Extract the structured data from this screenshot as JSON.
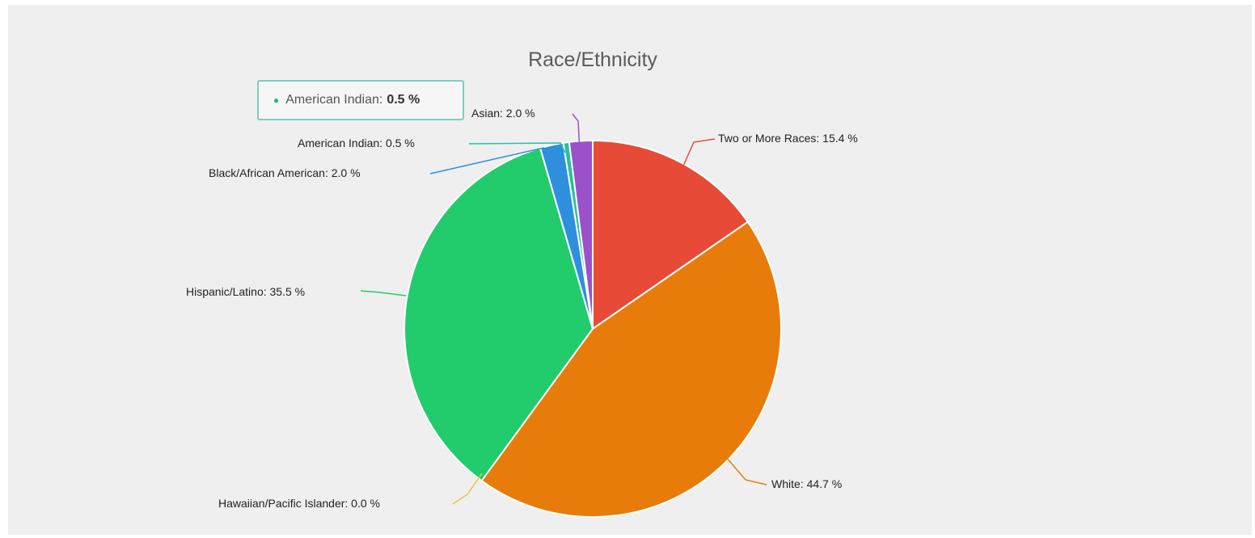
{
  "chart_data": {
    "type": "pie",
    "title": "Race/Ethnicity",
    "slices": [
      {
        "name": "Two or More Races",
        "value": 15.4,
        "label": "Two or More Races: 15.4 %",
        "color": "#e74b37"
      },
      {
        "name": "White",
        "value": 44.7,
        "label": "White: 44.7 %",
        "color": "#e77c0a"
      },
      {
        "name": "Hawaiian/Pacific Islander",
        "value": 0.0,
        "label": "Hawaiian/Pacific Islander: 0.0 %",
        "color": "#e6c542"
      },
      {
        "name": "Hispanic/Latino",
        "value": 35.5,
        "label": "Hispanic/Latino: 35.5 %",
        "color": "#22cc6d"
      },
      {
        "name": "Black/African American",
        "value": 2.0,
        "label": "Black/African American: 2.0 %",
        "color": "#2e8fdc"
      },
      {
        "name": "American Indian",
        "value": 0.5,
        "label": "American Indian: 0.5 %",
        "color": "#27c0a2"
      },
      {
        "name": "Asian",
        "value": 2.0,
        "label": "Asian: 2.0 %",
        "color": "#9b51c9"
      }
    ]
  },
  "tooltip": {
    "series": "American Indian:",
    "value": "0.5 %"
  }
}
